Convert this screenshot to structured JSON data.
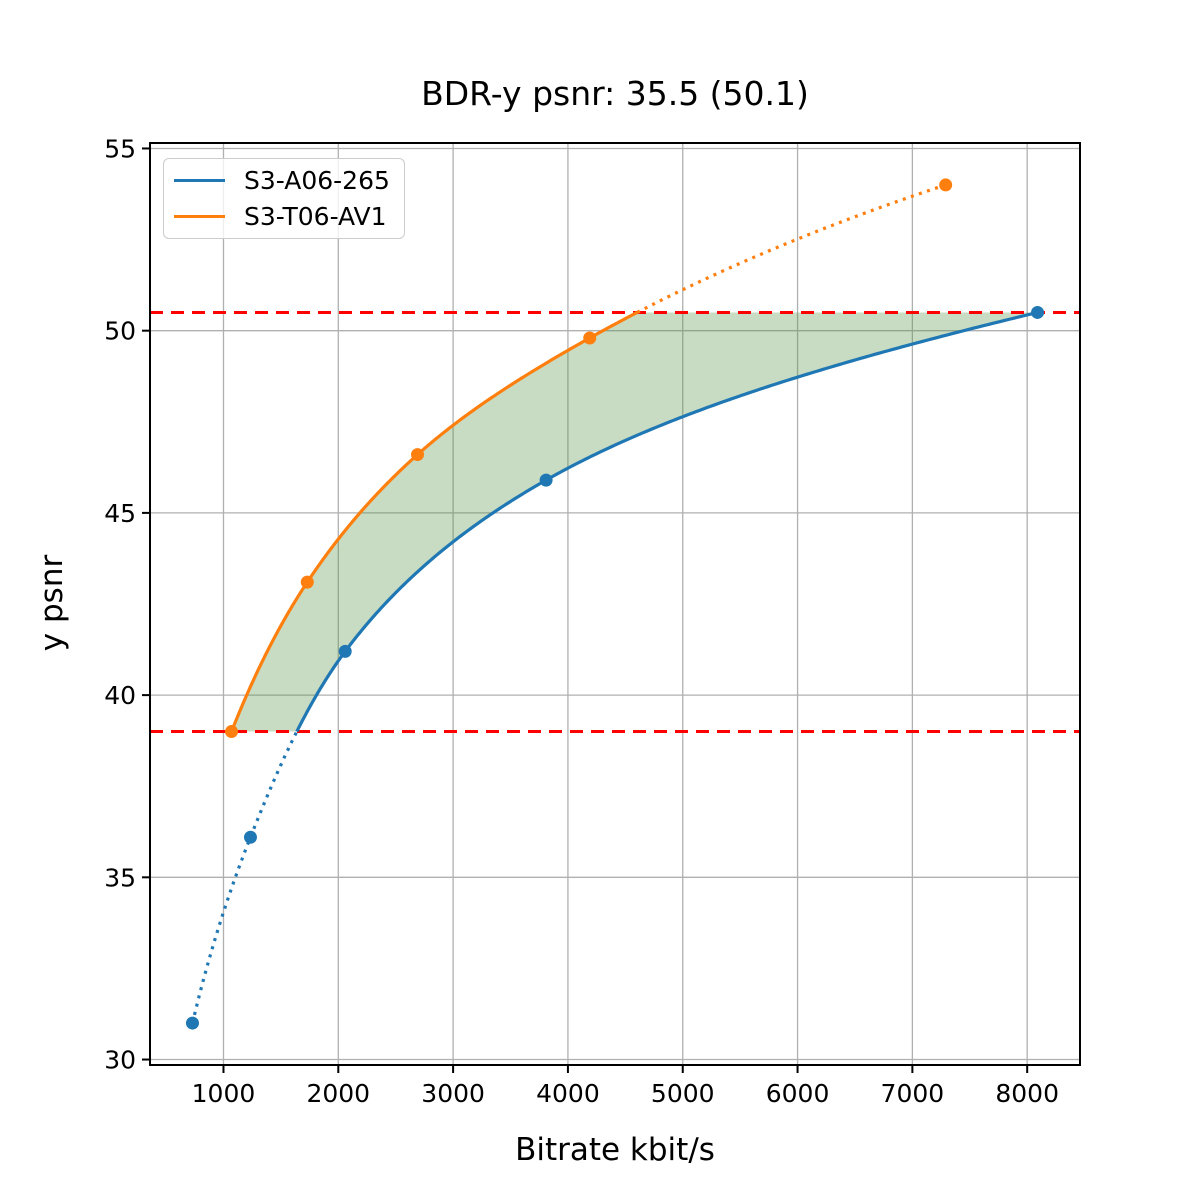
{
  "figure": {
    "title": "BDR-y psnr: 35.5 (50.1)",
    "xlabel": "Bitrate kbit/s",
    "ylabel": "y psnr"
  },
  "legend": {
    "position": "upper left",
    "items": [
      {
        "label": "S3-A06-265",
        "color": "#1f77b4"
      },
      {
        "label": "S3-T06-AV1",
        "color": "#ff7f0e"
      }
    ]
  },
  "chart_data": {
    "type": "line",
    "title": "BDR-y psnr: 35.5 (50.1)",
    "xlabel": "Bitrate kbit/s",
    "ylabel": "y psnr",
    "xlim": [
      360,
      8460
    ],
    "ylim": [
      29.85,
      55.15
    ],
    "xticks": [
      1000,
      2000,
      3000,
      4000,
      5000,
      6000,
      7000,
      8000
    ],
    "yticks": [
      30,
      35,
      40,
      45,
      50,
      55
    ],
    "grid": true,
    "grid_color": "#b0b0b0",
    "legend_position": "upper left",
    "series": [
      {
        "name": "S3-A06-265",
        "color": "#1f77b4",
        "x": [
          730,
          1235,
          2060,
          3810,
          8090
        ],
        "y": [
          31.0,
          36.1,
          41.2,
          45.9,
          50.5
        ],
        "interpolation": "pchip-log-x",
        "solid_y_range": [
          39.0,
          50.5
        ],
        "dotted_outside_range": true,
        "markers": "filled-circle"
      },
      {
        "name": "S3-T06-AV1",
        "color": "#ff7f0e",
        "x": [
          1070,
          1730,
          2690,
          4190,
          7290
        ],
        "y": [
          39.0,
          43.1,
          46.6,
          49.8,
          54.0
        ],
        "interpolation": "pchip-log-x",
        "solid_y_range": [
          39.0,
          50.5
        ],
        "dotted_outside_range": true,
        "markers": "filled-circle"
      }
    ],
    "hlines": [
      {
        "y": 50.5,
        "color": "#ff0000",
        "style": "dashed"
      },
      {
        "y": 39.0,
        "color": "#ff0000",
        "style": "dashed"
      }
    ],
    "bd_shaded_region": {
      "between": [
        "S3-T06-AV1",
        "S3-A06-265"
      ],
      "psnr_range": [
        39.0,
        50.5
      ],
      "color": "#509143",
      "opacity": 0.32
    }
  }
}
